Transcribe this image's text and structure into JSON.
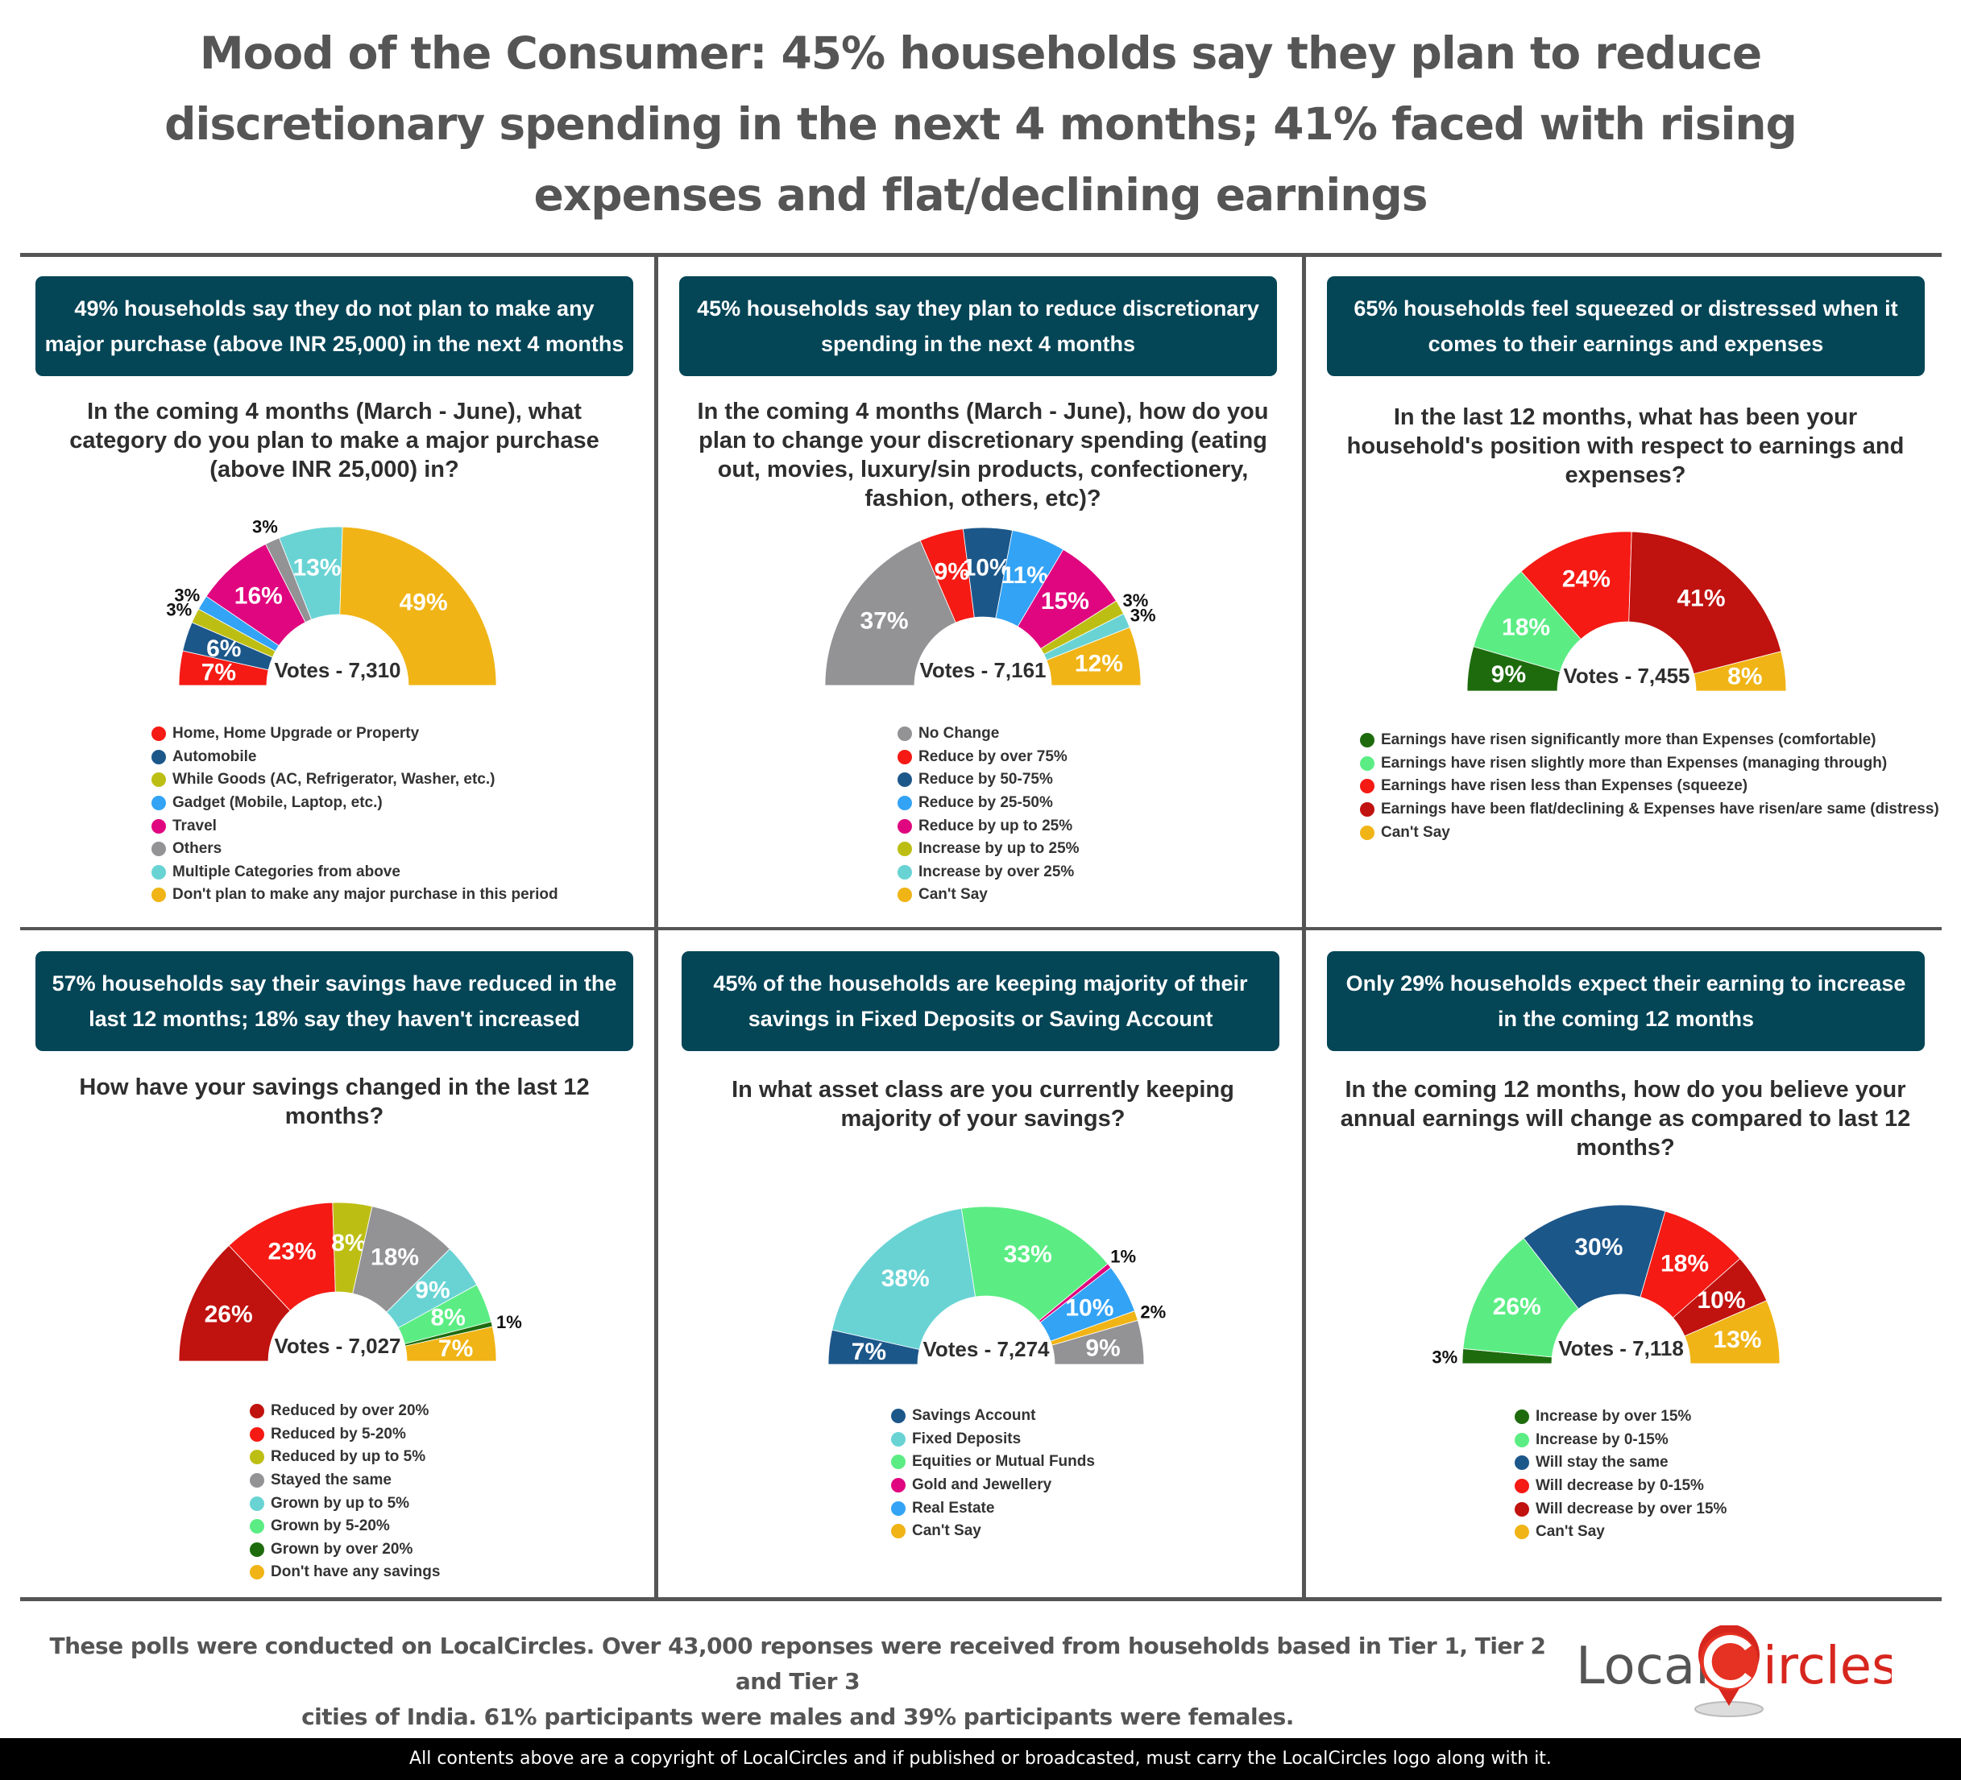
{
  "header": {
    "title_lines": [
      "Mood of the Consumer: 45% households say they plan to reduce",
      "discretionary spending in the next 4 months; 41% faced with rising",
      "expenses and flat/declining earnings"
    ]
  },
  "panels": [
    {
      "banner": "49% households say they do not plan to make any major purchase (above INR 25,000) in the next 4 months",
      "question": "In the coming 4 months (March - June), what category do you plan to make a major purchase (above INR 25,000) in?",
      "votes": "Votes - 7,310"
    },
    {
      "banner": "45% households say they plan to reduce discretionary spending in the next 4 months",
      "question": "In the coming 4 months (March - June), how do you plan to change your discretionary spending (eating out, movies, luxury/sin products, confectionery, fashion, others, etc)?",
      "votes": "Votes - 7,161"
    },
    {
      "banner": "65% households feel squeezed or distressed when it comes to their earnings and expenses",
      "question": "In the last 12 months, what has been your household's position with respect to earnings and expenses?",
      "votes": "Votes - 7,455"
    },
    {
      "banner": "57% households say their savings have reduced in the last 12 months; 18% say they haven't increased",
      "question": "How have your savings changed in the last 12 months?",
      "votes": "Votes - 7,027"
    },
    {
      "banner": "45% of the households are keeping majority of their savings in Fixed Deposits or Saving Account",
      "question": "In what asset class are you currently keeping majority of your savings?",
      "votes": "Votes - 7,274"
    },
    {
      "banner": "Only 29% households expect their earning to increase in the coming 12 months",
      "question": "In the coming 12 months, how do you believe your annual earnings will change as compared to last 12 months?",
      "votes": "Votes - 7,118"
    }
  ],
  "footer": {
    "note_lines": [
      "These polls were conducted on LocalCircles. Over 43,000 reponses were received from households based in Tier 1, Tier 2 and Tier 3",
      "cities of India. 61% participants were males and 39% participants were females."
    ],
    "logo_local": "Local",
    "logo_circles": "ircles",
    "copyright": "All contents above are a copyright of LocalCircles and if published or broadcasted, must carry the LocalCircles logo along with it."
  },
  "colors": {
    "banner_bg": "#044556",
    "red": "#F51A14",
    "dark_red": "#C0120F",
    "navy": "#1C578A",
    "olive": "#BDBE14",
    "sky_blue": "#33A3F5",
    "magenta": "#E0067F",
    "gray": "#939396",
    "cyan": "#69D3D4",
    "amber": "#F0B416",
    "light_green": "#5BED84",
    "dark_green": "#1E6B0E"
  },
  "chart_data": [
    {
      "type": "pie",
      "variant": "half-donut",
      "title": "In the coming 4 months (March - June), what category do you plan to make a major purchase (above INR 25,000) in?",
      "total_votes": 7310,
      "categories": [
        "Home, Home Upgrade or Property",
        "Automobile",
        "While Goods (AC, Refrigerator, Washer, etc.)",
        "Gadget (Mobile, Laptop, etc.)",
        "Travel",
        "Others",
        "Multiple Categories from above",
        "Don't plan to make any major purchase in this period"
      ],
      "values": [
        7,
        6,
        3,
        3,
        16,
        3,
        13,
        49
      ],
      "labels": [
        "7%",
        "6%",
        "3%",
        "3%",
        "16%",
        "3%",
        "13%",
        "49%"
      ],
      "colors": [
        "#F51A14",
        "#1C578A",
        "#BDBE14",
        "#33A3F5",
        "#E0067F",
        "#939396",
        "#69D3D4",
        "#F0B416"
      ],
      "outside_labels": [
        false,
        false,
        true,
        true,
        false,
        true,
        false,
        false
      ],
      "legend_position": "bottom"
    },
    {
      "type": "pie",
      "variant": "half-donut",
      "title": "In the coming 4 months (March - June), how do you plan to change your discretionary spending (eating out, movies, luxury/sin products, confectionery, fashion, others, etc)?",
      "total_votes": 7161,
      "categories": [
        "No Change",
        "Reduce by over 75%",
        "Reduce by 50-75%",
        "Reduce by 25-50%",
        "Reduce by up to 25%",
        "Increase by up to 25%",
        "Increase by over 25%",
        "Can't Say"
      ],
      "values": [
        37,
        9,
        10,
        11,
        15,
        3,
        3,
        12
      ],
      "labels": [
        "37%",
        "9%",
        "10%",
        "11%",
        "15%",
        "3%",
        "3%",
        "12%"
      ],
      "colors": [
        "#939396",
        "#F51A14",
        "#1C578A",
        "#33A3F5",
        "#E0067F",
        "#BDBE14",
        "#69D3D4",
        "#F0B416"
      ],
      "outside_labels": [
        false,
        false,
        false,
        false,
        false,
        true,
        true,
        false
      ],
      "legend_position": "bottom"
    },
    {
      "type": "pie",
      "variant": "half-donut",
      "title": "In the last 12 months, what has been your household's position with respect to earnings and expenses?",
      "total_votes": 7455,
      "categories": [
        "Earnings have risen significantly more than Expenses (comfortable)",
        "Earnings have risen slightly more than Expenses (managing through)",
        "Earnings have risen less than Expenses (squeeze)",
        "Earnings have been flat/declining & Expenses have risen/are same (distress)",
        "Can't Say"
      ],
      "values": [
        9,
        18,
        24,
        41,
        8
      ],
      "labels": [
        "9%",
        "18%",
        "24%",
        "41%",
        "8%"
      ],
      "colors": [
        "#1E6B0E",
        "#5BED84",
        "#F51A14",
        "#C0120F",
        "#F0B416"
      ],
      "outside_labels": [
        false,
        false,
        false,
        false,
        false
      ],
      "legend_position": "bottom"
    },
    {
      "type": "pie",
      "variant": "half-donut",
      "title": "How have your savings changed in the last 12 months?",
      "total_votes": 7027,
      "categories": [
        "Reduced by over 20%",
        "Reduced by 5-20%",
        "Reduced by up to 5%",
        "Stayed the same",
        "Grown by up to 5%",
        "Grown by 5-20%",
        "Grown by over 20%",
        "Don't have any savings"
      ],
      "values": [
        26,
        23,
        8,
        18,
        9,
        8,
        1,
        7
      ],
      "labels": [
        "26%",
        "23%",
        "8%",
        "18%",
        "9%",
        "8%",
        "1%",
        "7%"
      ],
      "colors": [
        "#C0120F",
        "#F51A14",
        "#BDBE14",
        "#939396",
        "#69D3D4",
        "#5BED84",
        "#1E6B0E",
        "#F0B416"
      ],
      "outside_labels": [
        false,
        false,
        false,
        false,
        false,
        false,
        true,
        false
      ],
      "legend_position": "bottom"
    },
    {
      "type": "pie",
      "variant": "half-donut",
      "title": "In what asset class are you currently keeping majority of your savings?",
      "total_votes": 7274,
      "categories": [
        "Savings Account",
        "Fixed Deposits",
        "Equities or Mutual Funds",
        "Gold and Jewellery",
        "Real Estate",
        "Can't Say",
        ""
      ],
      "values": [
        7,
        38,
        33,
        1,
        10,
        2,
        9
      ],
      "labels": [
        "7%",
        "38%",
        "33%",
        "1%",
        "10%",
        "2%",
        "9%"
      ],
      "colors": [
        "#1C578A",
        "#69D3D4",
        "#5BED84",
        "#E0067F",
        "#33A3F5",
        "#F0B416",
        "#939396"
      ],
      "outside_labels": [
        false,
        false,
        false,
        true,
        false,
        true,
        false
      ],
      "legend_count": 6,
      "legend_position": "bottom"
    },
    {
      "type": "pie",
      "variant": "half-donut",
      "title": "In the coming 12 months, how do you believe your annual earnings will change as compared to last 12 months?",
      "total_votes": 7118,
      "categories": [
        "Increase by over 15%",
        "Increase by 0-15%",
        "Will stay the same",
        "Will decrease by 0-15%",
        "Will decrease by over 15%",
        "Can't Say"
      ],
      "values": [
        3,
        26,
        30,
        18,
        10,
        13
      ],
      "labels": [
        "3%",
        "26%",
        "30%",
        "18%",
        "10%",
        "13%"
      ],
      "colors": [
        "#1E6B0E",
        "#5BED84",
        "#1C578A",
        "#F51A14",
        "#C0120F",
        "#F0B416"
      ],
      "outside_labels": [
        true,
        false,
        false,
        false,
        false,
        false
      ],
      "legend_position": "bottom"
    }
  ]
}
